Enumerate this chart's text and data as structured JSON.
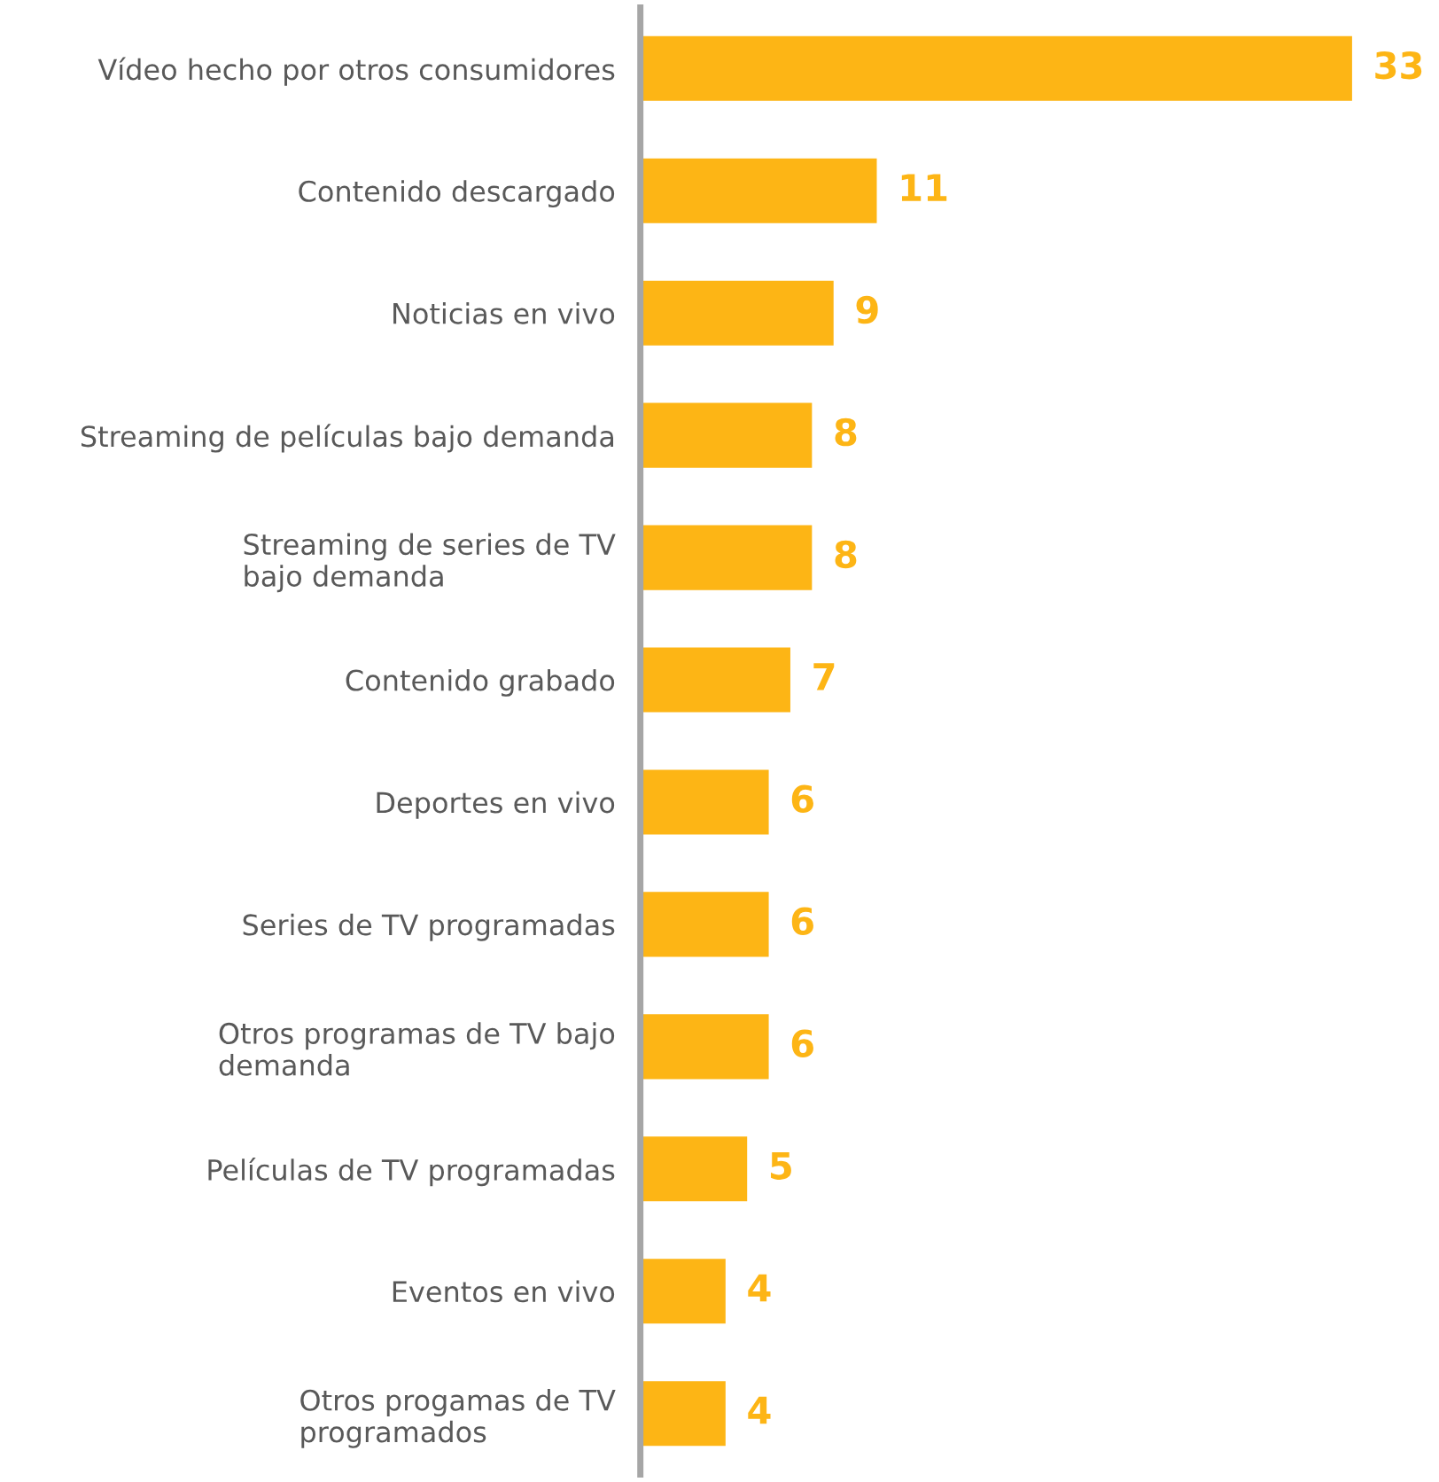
{
  "chart_data": {
    "type": "bar",
    "orientation": "horizontal",
    "categories": [
      "Vídeo hecho por otros consumidores",
      "Contenido descargado",
      "Noticias en vivo",
      "Streaming de películas bajo demanda",
      "Streaming de series de TV\nbajo demanda",
      "Contenido grabado",
      "Deportes en vivo",
      "Series de TV programadas",
      "Otros programas de TV bajo\ndemanda",
      "Películas de TV programadas",
      "Eventos en vivo",
      "Otros progamas de TV\nprogramados"
    ],
    "values": [
      33,
      11,
      9,
      8,
      8,
      7,
      6,
      6,
      6,
      5,
      4,
      4
    ],
    "color": "#fdb515",
    "data_labels": true,
    "tick_labels": "y",
    "grid": false,
    "legend": false
  }
}
